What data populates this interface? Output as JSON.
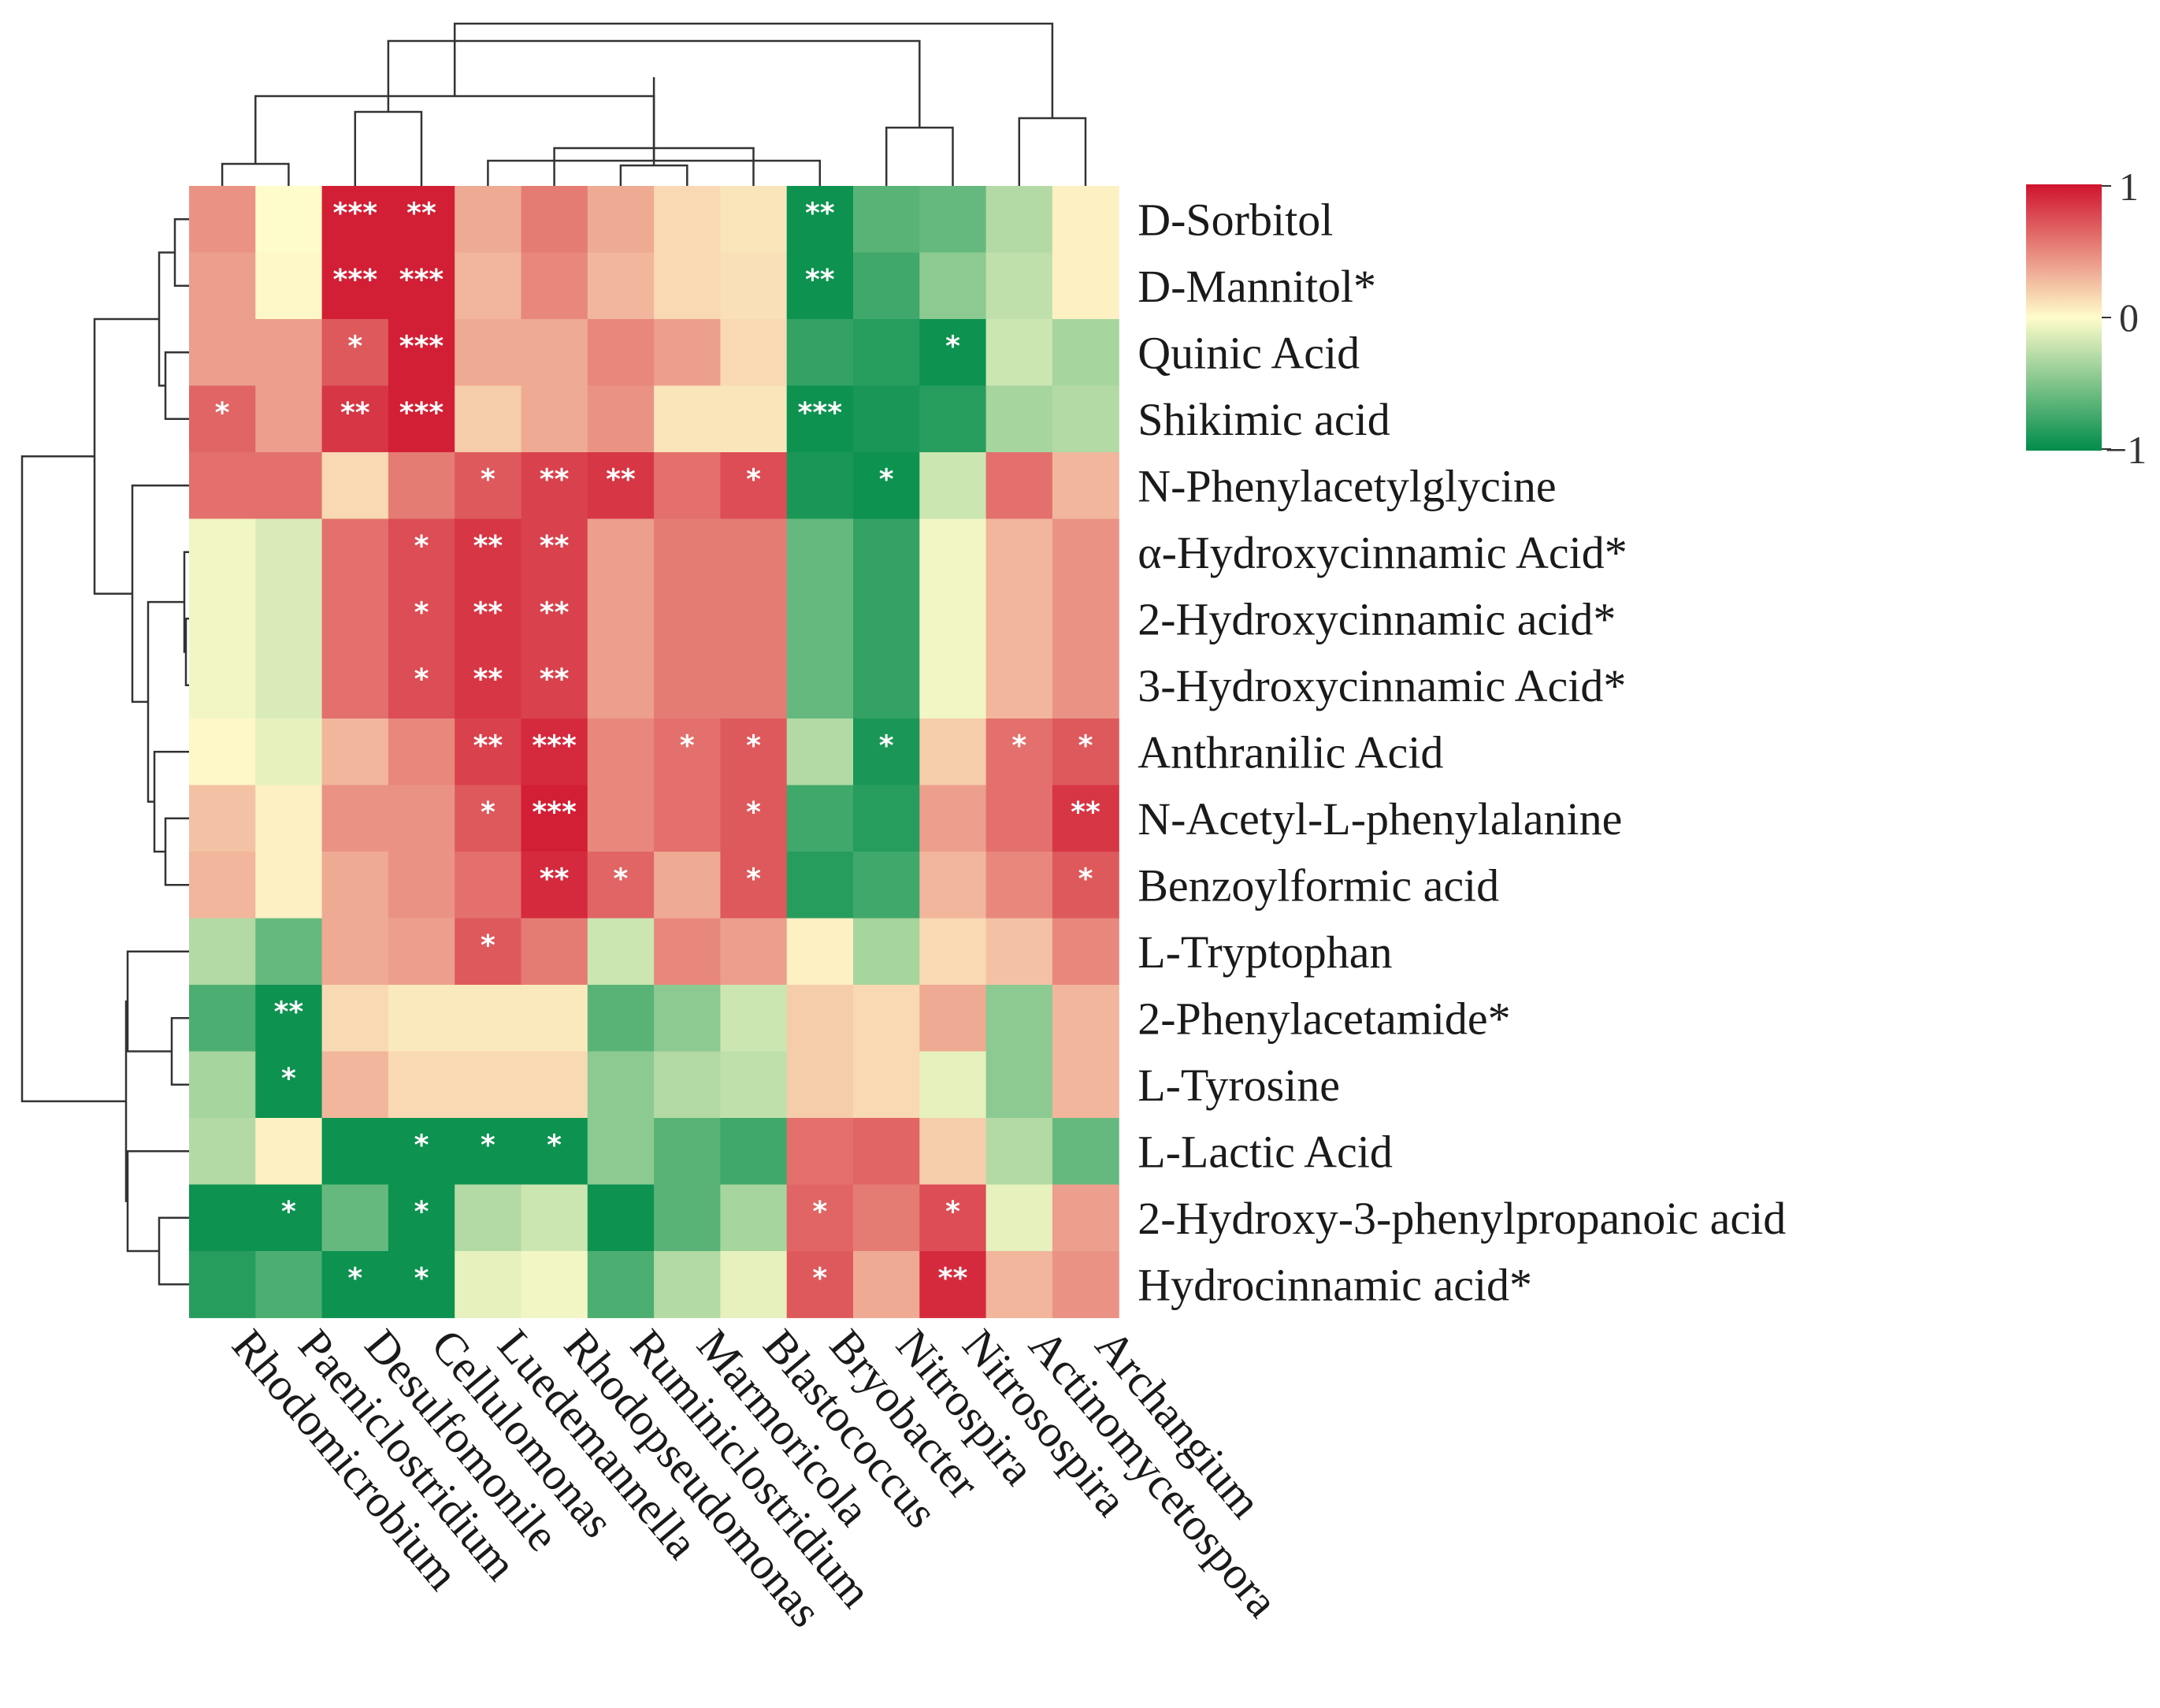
{
  "chart_data": {
    "type": "heatmap",
    "rows": [
      "D-Sorbitol",
      "D-Mannitol*",
      "Quinic Acid",
      "Shikimic acid",
      "N-Phenylacetylglycine",
      "α-Hydroxycinnamic Acid*",
      "2-Hydroxycinnamic acid*",
      "3-Hydroxycinnamic Acid*",
      "Anthranilic Acid",
      "N-Acetyl-L-phenylalanine",
      "Benzoylformic acid",
      "L-Tryptophan",
      "2-Phenylacetamide*",
      "L-Tyrosine",
      "L-Lactic Acid",
      "2-Hydroxy-3-phenylpropanoic acid",
      "Hydrocinnamic acid*"
    ],
    "columns": [
      "Rhodomicrobium",
      "Paeniclostridium",
      "Desulfomonile",
      "Cellulomonas",
      "Luedemannella",
      "Rhodopseudomonas",
      "Ruminiclostridium",
      "Marmoricola",
      "Blastococcus",
      "Bryobacter",
      "Nitrospira",
      "Nitrosospira",
      "Actinomycetospora",
      "Archangium"
    ],
    "values": [
      [
        0.45,
        0.0,
        0.95,
        0.95,
        0.35,
        0.55,
        0.35,
        0.15,
        0.1,
        -0.95,
        -0.65,
        -0.6,
        -0.3,
        0.05
      ],
      [
        0.4,
        0.02,
        0.95,
        0.95,
        0.3,
        0.5,
        0.3,
        0.15,
        0.12,
        -0.95,
        -0.75,
        -0.45,
        -0.25,
        0.05
      ],
      [
        0.4,
        0.4,
        0.7,
        0.95,
        0.35,
        0.35,
        0.5,
        0.4,
        0.15,
        -0.8,
        -0.85,
        -0.95,
        -0.2,
        -0.35
      ],
      [
        0.65,
        0.4,
        0.85,
        0.95,
        0.2,
        0.35,
        0.45,
        0.1,
        0.1,
        -0.95,
        -0.9,
        -0.85,
        -0.35,
        -0.3
      ],
      [
        0.6,
        0.6,
        0.15,
        0.55,
        0.7,
        0.8,
        0.85,
        0.6,
        0.75,
        -0.9,
        -0.95,
        -0.2,
        0.6,
        0.3
      ],
      [
        -0.05,
        -0.15,
        0.6,
        0.75,
        0.85,
        0.8,
        0.4,
        0.55,
        0.55,
        -0.6,
        -0.8,
        -0.05,
        0.3,
        0.45
      ],
      [
        -0.05,
        -0.15,
        0.6,
        0.75,
        0.85,
        0.8,
        0.4,
        0.55,
        0.55,
        -0.6,
        -0.8,
        -0.05,
        0.3,
        0.45
      ],
      [
        -0.05,
        -0.15,
        0.6,
        0.75,
        0.85,
        0.8,
        0.4,
        0.55,
        0.55,
        -0.6,
        -0.8,
        -0.05,
        0.3,
        0.45
      ],
      [
        0.02,
        -0.1,
        0.3,
        0.5,
        0.8,
        0.9,
        0.5,
        0.6,
        0.7,
        -0.3,
        -0.9,
        0.2,
        0.6,
        0.7
      ],
      [
        0.25,
        0.05,
        0.45,
        0.45,
        0.7,
        0.95,
        0.5,
        0.6,
        0.7,
        -0.75,
        -0.85,
        0.4,
        0.6,
        0.85
      ],
      [
        0.3,
        0.05,
        0.35,
        0.45,
        0.6,
        0.9,
        0.65,
        0.35,
        0.7,
        -0.85,
        -0.75,
        0.3,
        0.5,
        0.7
      ],
      [
        -0.3,
        -0.6,
        0.35,
        0.4,
        0.7,
        0.55,
        -0.2,
        0.5,
        0.4,
        0.05,
        -0.35,
        0.15,
        0.25,
        0.5
      ],
      [
        -0.7,
        -0.95,
        0.15,
        0.08,
        0.08,
        0.08,
        -0.65,
        -0.45,
        -0.2,
        0.2,
        0.15,
        0.35,
        -0.45,
        0.3
      ],
      [
        -0.35,
        -0.95,
        0.3,
        0.15,
        0.15,
        0.15,
        -0.45,
        -0.3,
        -0.25,
        0.2,
        0.15,
        -0.1,
        -0.45,
        0.3
      ],
      [
        -0.3,
        0.05,
        -0.95,
        -0.95,
        -0.95,
        -0.95,
        -0.45,
        -0.65,
        -0.75,
        0.6,
        0.65,
        0.2,
        -0.3,
        -0.6
      ],
      [
        -0.95,
        -0.95,
        -0.6,
        -0.95,
        -0.3,
        -0.2,
        -0.95,
        -0.65,
        -0.35,
        0.65,
        0.55,
        0.75,
        -0.1,
        0.4
      ],
      [
        -0.85,
        -0.7,
        -0.95,
        -0.95,
        -0.1,
        -0.05,
        -0.7,
        -0.3,
        -0.1,
        0.7,
        0.35,
        0.9,
        0.3,
        0.45
      ]
    ],
    "significance": [
      [
        "",
        "",
        "***",
        "**",
        "",
        "",
        "",
        "",
        "",
        "**",
        "",
        "",
        "",
        ""
      ],
      [
        "",
        "",
        "***",
        "***",
        "",
        "",
        "",
        "",
        "",
        "**",
        "",
        "",
        "",
        ""
      ],
      [
        "",
        "",
        "*",
        "***",
        "",
        "",
        "",
        "",
        "",
        "",
        "",
        "*",
        "",
        ""
      ],
      [
        "*",
        "",
        "**",
        "***",
        "",
        "",
        "",
        "",
        "",
        "***",
        "",
        "",
        "",
        ""
      ],
      [
        "",
        "",
        "",
        "",
        "*",
        "**",
        "**",
        "",
        "*",
        "",
        "*",
        "",
        "",
        ""
      ],
      [
        "",
        "",
        "",
        "*",
        "**",
        "**",
        "",
        "",
        "",
        "",
        "",
        "",
        "",
        ""
      ],
      [
        "",
        "",
        "",
        "*",
        "**",
        "**",
        "",
        "",
        "",
        "",
        "",
        "",
        "",
        ""
      ],
      [
        "",
        "",
        "",
        "*",
        "**",
        "**",
        "",
        "",
        "",
        "",
        "",
        "",
        "",
        ""
      ],
      [
        "",
        "",
        "",
        "",
        "**",
        "***",
        "",
        "*",
        "*",
        "",
        "*",
        "",
        "*",
        "*"
      ],
      [
        "",
        "",
        "",
        "",
        "*",
        "***",
        "",
        "",
        "*",
        "",
        "",
        "",
        "",
        "**"
      ],
      [
        "",
        "",
        "",
        "",
        "",
        "**",
        "*",
        "",
        "*",
        "",
        "",
        "",
        "",
        "*"
      ],
      [
        "",
        "",
        "",
        "",
        "*",
        "",
        "",
        "",
        "",
        "",
        "",
        "",
        "",
        ""
      ],
      [
        "",
        "**",
        "",
        "",
        "",
        "",
        "",
        "",
        "",
        "",
        "",
        "",
        "",
        ""
      ],
      [
        "",
        "*",
        "",
        "",
        "",
        "",
        "",
        "",
        "",
        "",
        "",
        "",
        "",
        ""
      ],
      [
        "",
        "",
        "",
        "*",
        "*",
        "*",
        "",
        "",
        "",
        "",
        "",
        "",
        "",
        ""
      ],
      [
        "",
        "*",
        "",
        "*",
        "",
        "",
        "",
        "",
        "",
        "*",
        "",
        "*",
        "",
        ""
      ],
      [
        "",
        "",
        "*",
        "*",
        "",
        "",
        "",
        "",
        "",
        "*",
        "",
        "**",
        "",
        ""
      ]
    ],
    "colorscale": {
      "min": -1,
      "max": 1,
      "low": "#008c4a",
      "mid": "#fffccb",
      "high": "#d0132d",
      "ticks": [
        "1",
        "0",
        "−1"
      ]
    },
    "legend_position": "top-right",
    "row_dendrogram": true,
    "column_dendrogram": true
  }
}
